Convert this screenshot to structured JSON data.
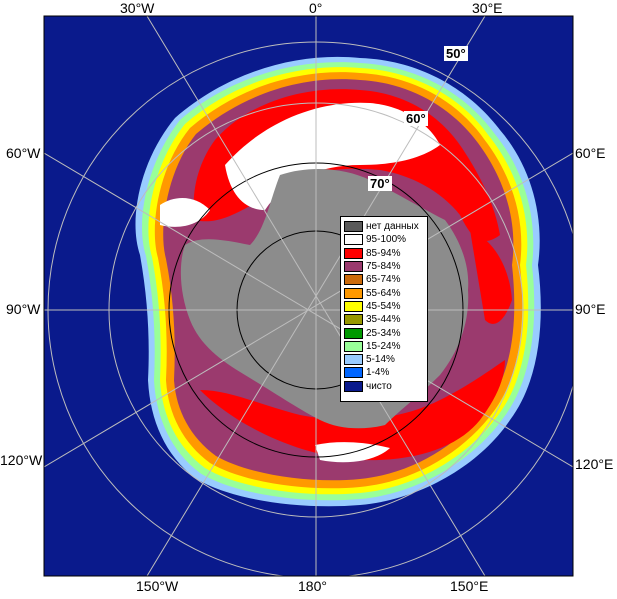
{
  "map": {
    "colors": {
      "ocean": "#0a1a8c",
      "land": "#8c8c8c",
      "ice_shelf": "#8c8c8c",
      "no_data": "#5a5a5a",
      "grid": "#bdbdbd"
    },
    "longitude_labels": {
      "top_30w": "30°W",
      "top_0": "0°",
      "top_30e": "30°E",
      "left_60w": "60°W",
      "right_60e": "60°E",
      "left_90w": "90°W",
      "right_90e": "90°E",
      "left_120w": "120°W",
      "right_120e": "120°E",
      "bottom_150w": "150°W",
      "bottom_180": "180°",
      "bottom_150e": "150°E"
    },
    "latitude_labels": {
      "lat_50": "50°",
      "lat_60": "60°",
      "lat_70": "70°"
    }
  },
  "legend": {
    "items": [
      {
        "label": "нет данных",
        "color": "#5a5a5a"
      },
      {
        "label": "95-100%",
        "color": "#ffffff"
      },
      {
        "label": "85-94%",
        "color": "#ff0000"
      },
      {
        "label": "75-84%",
        "color": "#9b3a6e"
      },
      {
        "label": "65-74%",
        "color": "#cc6a0a"
      },
      {
        "label": "55-64%",
        "color": "#ff9900"
      },
      {
        "label": "45-54%",
        "color": "#ffff00"
      },
      {
        "label": "35-44%",
        "color": "#999900"
      },
      {
        "label": "25-34%",
        "color": "#009900"
      },
      {
        "label": "15-24%",
        "color": "#99ff99"
      },
      {
        "label": "5-14%",
        "color": "#99ccff"
      },
      {
        "label": "1-4%",
        "color": "#0066ff"
      },
      {
        "label": "чисто",
        "color": "#0a1a8c"
      }
    ]
  }
}
